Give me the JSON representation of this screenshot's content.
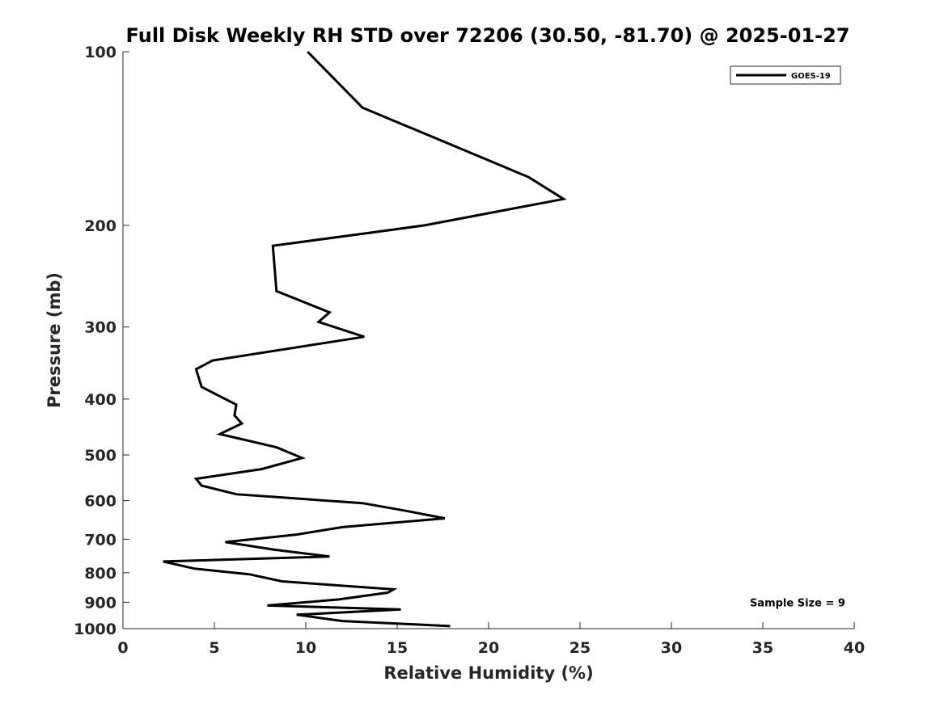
{
  "chart_data": {
    "type": "line",
    "title": "Full Disk Weekly RH STD over 72206 (30.50, -81.70) @ 2025-01-27",
    "xlabel": "Relative Humidity (%)",
    "ylabel": "Pressure (mb)",
    "xlim": [
      0,
      40
    ],
    "ylim": [
      100,
      1000
    ],
    "y_scale": "log",
    "y_reversed": true,
    "x_ticks": [
      0,
      5,
      10,
      15,
      20,
      25,
      30,
      35,
      40
    ],
    "y_ticks": [
      100,
      200,
      300,
      400,
      500,
      600,
      700,
      800,
      900,
      1000
    ],
    "grid": false,
    "legend_position": "top-right",
    "series": [
      {
        "name": "GOES-19",
        "color": "#000000",
        "points": [
          [
            10.1,
            100
          ],
          [
            13.1,
            125
          ],
          [
            22.2,
            165
          ],
          [
            24.1,
            180
          ],
          [
            16.5,
            200
          ],
          [
            13.0,
            207
          ],
          [
            8.2,
            217
          ],
          [
            8.4,
            260
          ],
          [
            11.3,
            283
          ],
          [
            10.7,
            294
          ],
          [
            13.2,
            312
          ],
          [
            4.9,
            343
          ],
          [
            4.0,
            355
          ],
          [
            4.3,
            381
          ],
          [
            6.2,
            409
          ],
          [
            6.1,
            427
          ],
          [
            6.5,
            441
          ],
          [
            5.3,
            460
          ],
          [
            8.4,
            485
          ],
          [
            9.8,
            506
          ],
          [
            7.6,
            529
          ],
          [
            4.0,
            550
          ],
          [
            4.3,
            565
          ],
          [
            6.2,
            585
          ],
          [
            13.1,
            606
          ],
          [
            15.5,
            625
          ],
          [
            17.6,
            644
          ],
          [
            12.0,
            667
          ],
          [
            9.5,
            687
          ],
          [
            5.6,
            708
          ],
          [
            8.3,
            730
          ],
          [
            11.3,
            750
          ],
          [
            2.2,
            765
          ],
          [
            3.9,
            787
          ],
          [
            6.9,
            805
          ],
          [
            8.7,
            828
          ],
          [
            14.8,
            855
          ],
          [
            14.5,
            866
          ],
          [
            11.8,
            890
          ],
          [
            7.9,
            912
          ],
          [
            15.2,
            926
          ],
          [
            9.5,
            946
          ],
          [
            12.0,
            970
          ],
          [
            15.0,
            980
          ],
          [
            17.9,
            990
          ]
        ]
      }
    ],
    "annotations": [
      {
        "text": "Sample Size = 9",
        "x": 36.9,
        "y": 900
      }
    ]
  }
}
